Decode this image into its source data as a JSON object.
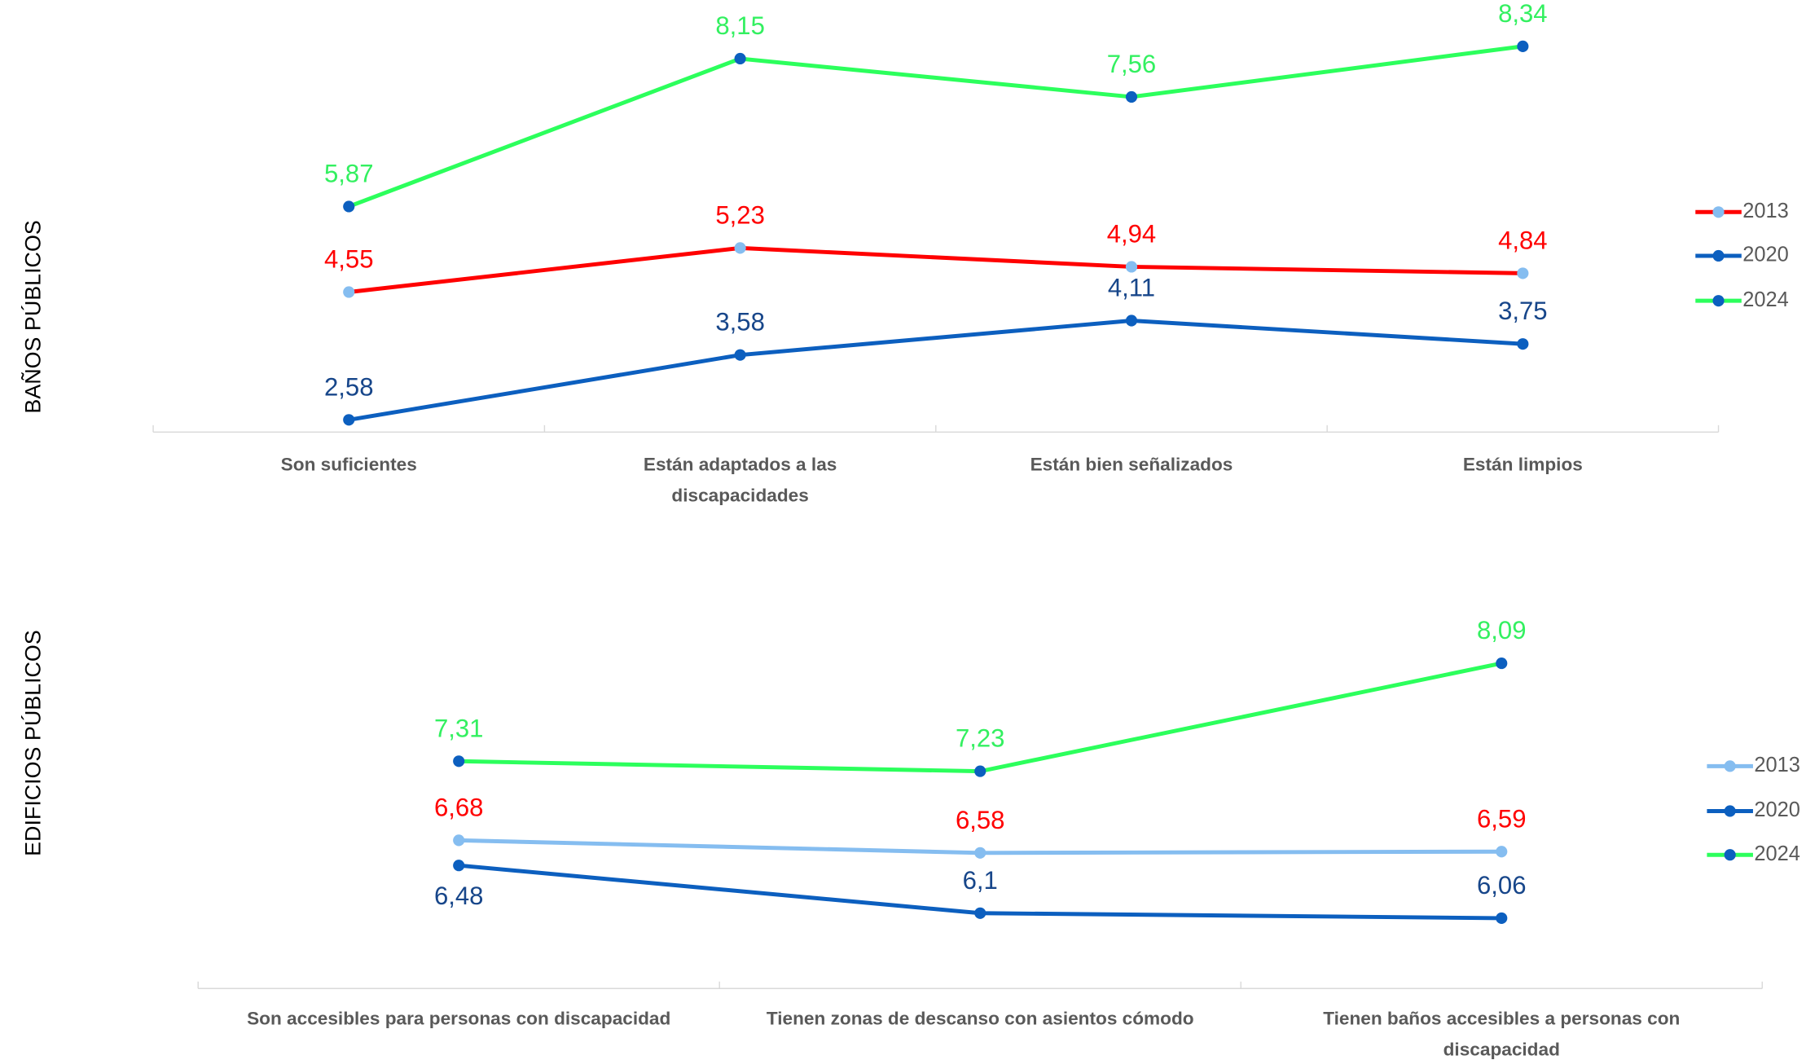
{
  "chart_data": [
    {
      "type": "line",
      "ylabel": "BAÑOS PÚBLICOS",
      "categories": [
        "Son suficientes",
        "Están adaptados a las discapacidades",
        "Están bien señalizados",
        "Están limpios"
      ],
      "ylim": [
        2,
        9
      ],
      "series": [
        {
          "name": "2013",
          "color": "#ff0000",
          "marker_color": "#85bdf0",
          "label_color": "#ff0000",
          "values": [
            4.55,
            5.23,
            4.94,
            4.84
          ],
          "value_labels": [
            "4,55",
            "5,23",
            "4,94",
            "4,84"
          ]
        },
        {
          "name": "2020",
          "color": "#0c5fbf",
          "marker_color": "#0c5fbf",
          "label_color": "#17468a",
          "values": [
            2.58,
            3.58,
            4.11,
            3.75
          ],
          "value_labels": [
            "2,58",
            "3,58",
            "4,11",
            "3,75"
          ]
        },
        {
          "name": "2024",
          "color": "#2cff5c",
          "marker_color": "#0c5fbf",
          "label_color": "#33f060",
          "values": [
            5.87,
            8.15,
            7.56,
            8.34
          ],
          "value_labels": [
            "5,87",
            "8,15",
            "7,56",
            "8,34"
          ]
        }
      ]
    },
    {
      "type": "line",
      "ylabel": "EDIFICIOS PÚBLICOS",
      "categories": [
        "Son accesibles para personas con discapacidad",
        "Tienen zonas de descanso con asientos cómodo",
        "Tienen baños accesibles a personas con discapacidad"
      ],
      "ylim": [
        5.5,
        8.5
      ],
      "series": [
        {
          "name": "2013",
          "color": "#85bdf0",
          "marker_color": "#85bdf0",
          "label_color": "#ff0000",
          "values": [
            6.68,
            6.58,
            6.59
          ],
          "value_labels": [
            "6,68",
            "6,58",
            "6,59"
          ]
        },
        {
          "name": "2020",
          "color": "#0c5fbf",
          "marker_color": "#0c5fbf",
          "label_color": "#17468a",
          "values": [
            6.48,
            6.1,
            6.06
          ],
          "value_labels": [
            "6,48",
            "6,1",
            "6,06"
          ]
        },
        {
          "name": "2024",
          "color": "#2cff5c",
          "marker_color": "#0c5fbf",
          "label_color": "#33f060",
          "values": [
            7.31,
            7.23,
            8.09
          ],
          "value_labels": [
            "7,31",
            "7,23",
            "8,09"
          ]
        }
      ]
    }
  ]
}
